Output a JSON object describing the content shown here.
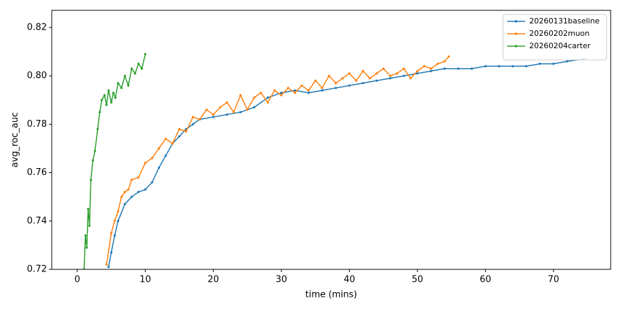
{
  "chart_data": {
    "type": "line",
    "xlabel": "time (mins)",
    "ylabel": "avg_roc_auc",
    "xlim": [
      -3.75,
      78.4
    ],
    "ylim": [
      0.72,
      0.8271
    ],
    "xticks": [
      0,
      10,
      20,
      30,
      40,
      50,
      60,
      70
    ],
    "yticks": [
      0.72,
      0.74,
      0.76,
      0.78,
      {
        "value": 0.8,
        "label": "0.80"
      },
      0.82
    ],
    "legend": "upper right",
    "series": [
      {
        "name": "20260131baseline",
        "color": "#1f77b4",
        "x": [
          4.6,
          5,
          5.5,
          6,
          7,
          8,
          9,
          10,
          11,
          12,
          13,
          14,
          15,
          16,
          17,
          18,
          20,
          22,
          24,
          26,
          28,
          30,
          32,
          34,
          36,
          38,
          40,
          42,
          44,
          46,
          48,
          50,
          52,
          54,
          56,
          58,
          60,
          62,
          64,
          66,
          68,
          70,
          72,
          74.5
        ],
        "values": [
          0.721,
          0.727,
          0.734,
          0.74,
          0.747,
          0.75,
          0.752,
          0.753,
          0.756,
          0.762,
          0.767,
          0.772,
          0.775,
          0.778,
          0.78,
          0.782,
          0.783,
          0.784,
          0.785,
          0.787,
          0.791,
          0.793,
          0.794,
          0.793,
          0.794,
          0.795,
          0.796,
          0.797,
          0.798,
          0.799,
          0.8,
          0.801,
          0.802,
          0.803,
          0.803,
          0.803,
          0.804,
          0.804,
          0.804,
          0.804,
          0.805,
          0.805,
          0.806,
          0.807
        ]
      },
      {
        "name": "20260202muon",
        "color": "#ff7f0e",
        "x": [
          4.3,
          5,
          5.5,
          6,
          6.5,
          7,
          7.5,
          8,
          9,
          10,
          11,
          12,
          13,
          14,
          15,
          16,
          17,
          18,
          19,
          20,
          21,
          22,
          23,
          24,
          25,
          26,
          27,
          28,
          29,
          30,
          31,
          32,
          33,
          34,
          35,
          36,
          37,
          38,
          39,
          40,
          41,
          42,
          43,
          44,
          45,
          46,
          47,
          48,
          49,
          50,
          51,
          52,
          53,
          54,
          54.6
        ],
        "values": [
          0.722,
          0.735,
          0.74,
          0.744,
          0.75,
          0.752,
          0.753,
          0.757,
          0.758,
          0.764,
          0.766,
          0.77,
          0.774,
          0.772,
          0.778,
          0.777,
          0.783,
          0.782,
          0.786,
          0.784,
          0.787,
          0.789,
          0.785,
          0.792,
          0.786,
          0.791,
          0.793,
          0.789,
          0.794,
          0.792,
          0.795,
          0.793,
          0.796,
          0.794,
          0.798,
          0.795,
          0.8,
          0.797,
          0.799,
          0.801,
          0.798,
          0.802,
          0.799,
          0.801,
          0.803,
          0.8,
          0.801,
          0.803,
          0.799,
          0.802,
          0.804,
          0.803,
          0.805,
          0.806,
          0.808
        ]
      },
      {
        "name": "20260204carter",
        "color": "#2ca02c",
        "x": [
          1.0,
          1.2,
          1.4,
          1.6,
          1.8,
          2.0,
          2.3,
          2.6,
          3.0,
          3.3,
          3.6,
          4.0,
          4.3,
          4.6,
          5.0,
          5.3,
          5.6,
          6.0,
          6.5,
          7.0,
          7.5,
          8.0,
          8.5,
          9.0,
          9.5,
          10.0
        ],
        "values": [
          0.72,
          0.734,
          0.729,
          0.745,
          0.738,
          0.757,
          0.765,
          0.769,
          0.778,
          0.785,
          0.79,
          0.792,
          0.788,
          0.794,
          0.789,
          0.793,
          0.791,
          0.797,
          0.795,
          0.8,
          0.796,
          0.803,
          0.801,
          0.805,
          0.803,
          0.809
        ]
      }
    ]
  }
}
